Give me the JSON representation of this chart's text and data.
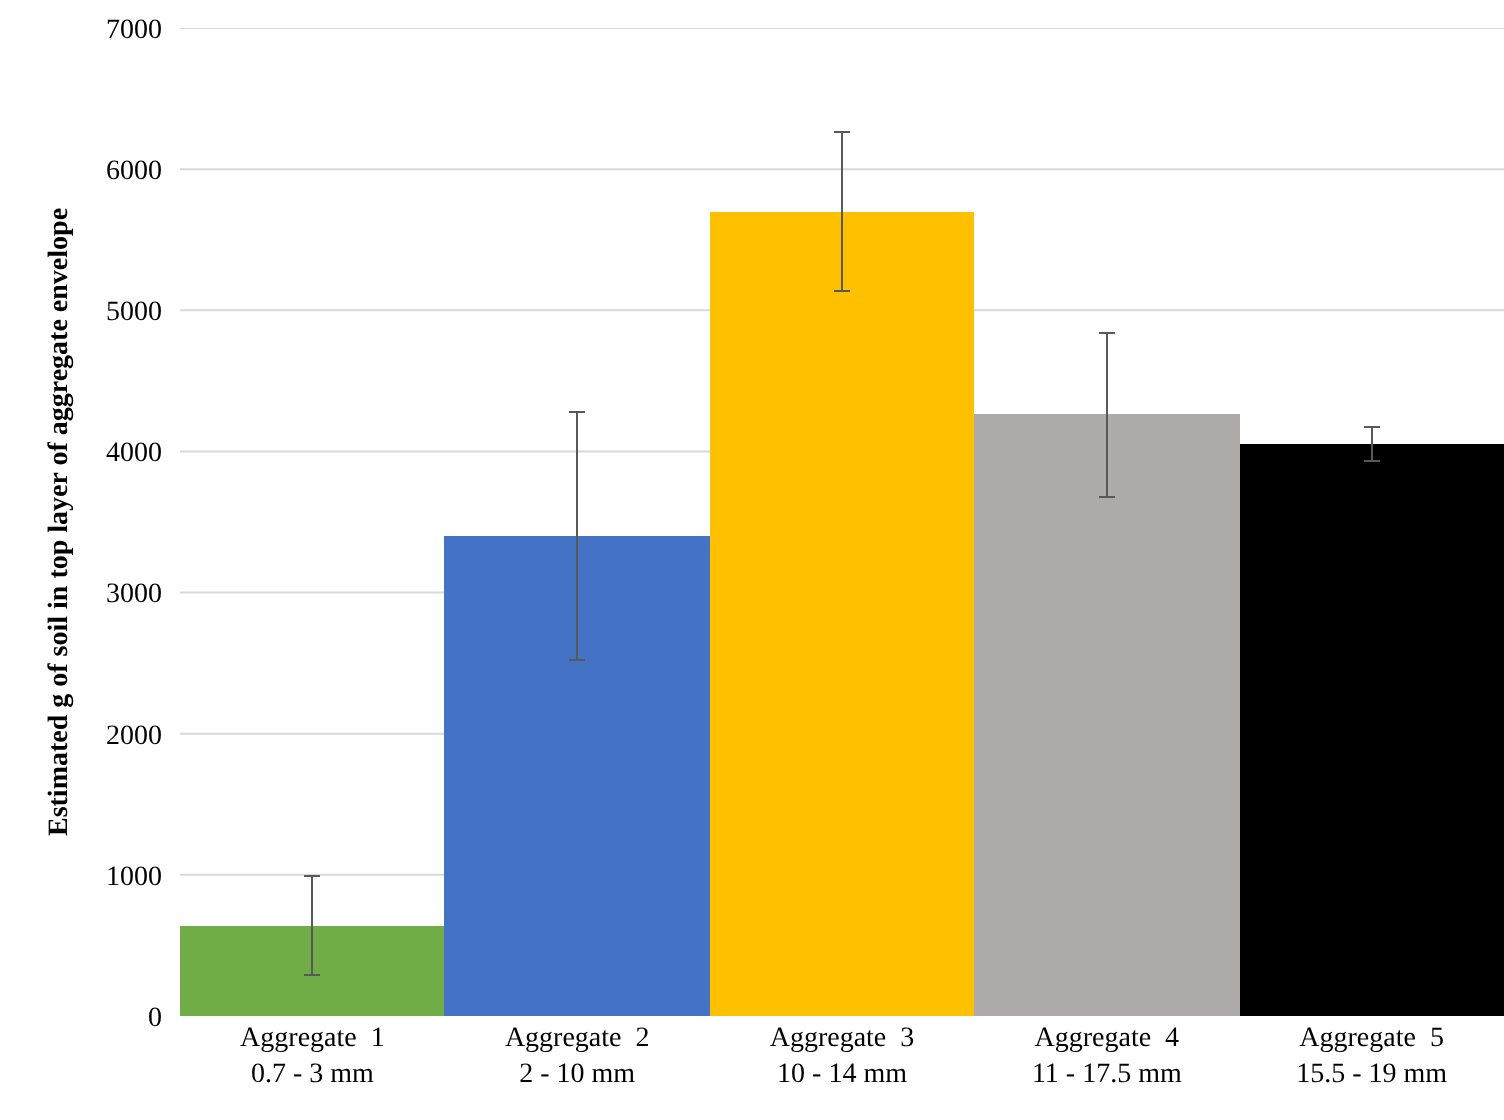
{
  "chart_data": {
    "type": "bar",
    "ylabel": "Estimated g of soil in top layer of aggregate envelope",
    "categories": [
      "Aggregate  1\n0.7 - 3 mm",
      "Aggregate  2\n2 - 10 mm",
      "Aggregate  3\n10 - 14 mm",
      "Aggregate  4\n11 - 17.5 mm",
      "Aggregate  5\n15.5 - 19 mm"
    ],
    "values": [
      640,
      3400,
      5700,
      4260,
      4050
    ],
    "errors": [
      350,
      880,
      565,
      580,
      120
    ],
    "colors": [
      "#70ad47",
      "#4472c4",
      "#ffc000",
      "#aeaaaa",
      "#000000"
    ],
    "ylim": [
      0,
      7000
    ],
    "yticks": [
      0,
      1000,
      2000,
      3000,
      4000,
      5000,
      6000,
      7000
    ],
    "grid": "y"
  }
}
